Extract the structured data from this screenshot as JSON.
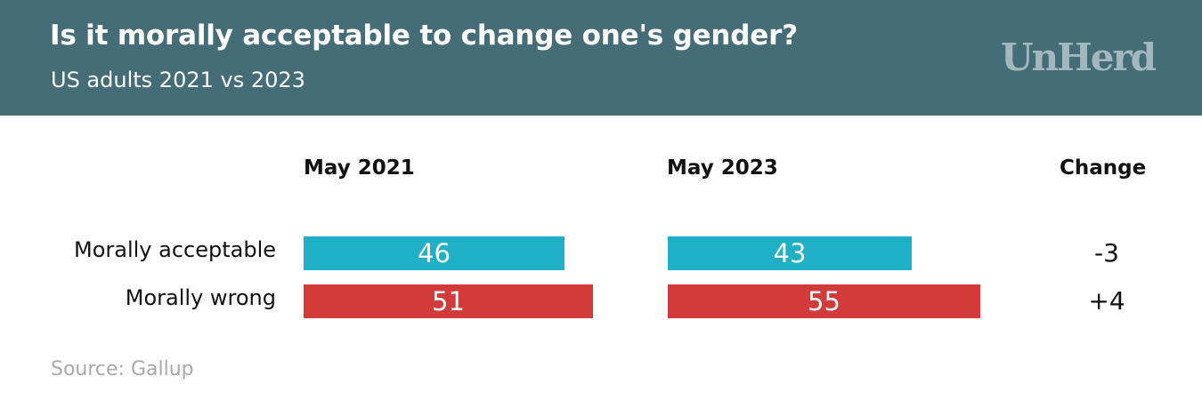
{
  "header": {
    "title": "Is it morally acceptable to change one's gender?",
    "subtitle": "US adults 2021 vs 2023",
    "logo": "UnHerd"
  },
  "columns": {
    "first": "May 2021",
    "second": "May 2023",
    "change": "Change"
  },
  "colors": {
    "header_bg": "#456d78",
    "acceptable": "#1fb0c8",
    "wrong": "#d23b3a"
  },
  "chart_data": {
    "type": "bar",
    "orientation": "horizontal",
    "categories": [
      "Morally acceptable",
      "Morally wrong"
    ],
    "series": [
      {
        "name": "May 2021",
        "values": [
          46,
          51
        ]
      },
      {
        "name": "May 2023",
        "values": [
          43,
          55
        ]
      }
    ],
    "change": [
      "-3",
      "+4"
    ],
    "xlim": [
      0,
      100
    ]
  },
  "source": "Source: Gallup"
}
